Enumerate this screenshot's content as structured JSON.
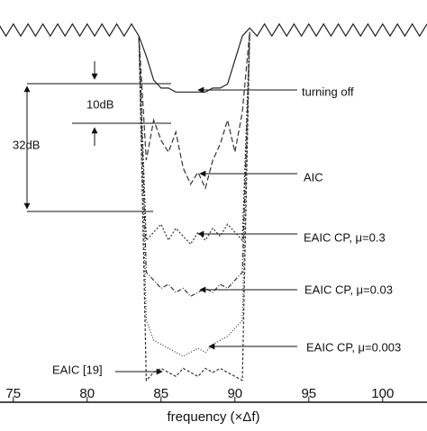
{
  "chart_data": {
    "type": "line",
    "xlabel": "frequency (×Δf)",
    "annotations": [
      "10dB",
      "32dB"
    ],
    "xlim": [
      74.1,
      103
    ],
    "xticks": [
      75,
      80,
      85,
      90,
      95,
      100
    ],
    "ylim": [
      -100,
      0
    ],
    "x": [
      74,
      74.5,
      75,
      75.5,
      76,
      76.5,
      77,
      77.5,
      78,
      78.5,
      79,
      79.5,
      80,
      80.5,
      81,
      81.5,
      82,
      82.5,
      83,
      83.5,
      84,
      84.5,
      85,
      85.5,
      86,
      86.5,
      87,
      87.5,
      88,
      88.5,
      89,
      89.5,
      90,
      90.5,
      91,
      91.5,
      92,
      92.5,
      93,
      93.5,
      94,
      94.5,
      95,
      95.5,
      96,
      96.5,
      97,
      97.5,
      98,
      98.5,
      99,
      99.5,
      100,
      100.5,
      101,
      101.5,
      102,
      102.5,
      103
    ],
    "series": [
      {
        "name": "turning off",
        "color": "#222222",
        "values": [
          -6,
          -9,
          -6,
          -9,
          -6,
          -9,
          -6,
          -9,
          -6,
          -9,
          -6,
          -9,
          -6,
          -9,
          -6,
          -9,
          -6,
          -9,
          -6,
          -9,
          -14,
          -20,
          -22,
          -22,
          -23,
          -23,
          -23,
          -23,
          -23,
          -22,
          -22,
          -21,
          -15,
          -9,
          -7,
          -9,
          -6,
          -9,
          -6,
          -9,
          -6,
          -9,
          -6,
          -9,
          -6,
          -9,
          -6,
          -9,
          -6,
          -9,
          -6,
          -9,
          -6,
          -9,
          -6,
          -9,
          -6,
          -9,
          -6
        ]
      },
      {
        "name": "AIC",
        "color": "#333333",
        "values": [
          null,
          null,
          null,
          null,
          null,
          null,
          null,
          null,
          null,
          null,
          null,
          null,
          null,
          null,
          null,
          null,
          null,
          null,
          null,
          -9,
          -40,
          -30,
          -35,
          -38,
          -33,
          -42,
          -46,
          -43,
          -47,
          -40,
          -36,
          -30,
          -38,
          -28,
          -8,
          null,
          null,
          null,
          null,
          null,
          null,
          null,
          null,
          null,
          null,
          null,
          null,
          null,
          null,
          null,
          null,
          null,
          null,
          null,
          null,
          null,
          null,
          null,
          null
        ]
      },
      {
        "name": "EAIC CP, μ=0.3",
        "color": "#333333",
        "values": [
          null,
          null,
          null,
          null,
          null,
          null,
          null,
          null,
          null,
          null,
          null,
          null,
          null,
          null,
          null,
          null,
          null,
          null,
          null,
          -9,
          -60,
          -58,
          -56,
          -60,
          -57,
          -59,
          -61,
          -58,
          -60,
          -57,
          -59,
          -56,
          -58,
          -60,
          -8,
          null,
          null,
          null,
          null,
          null,
          null,
          null,
          null,
          null,
          null,
          null,
          null,
          null,
          null,
          null,
          null,
          null,
          null,
          null,
          null,
          null,
          null,
          null,
          null
        ]
      },
      {
        "name": "EAIC CP, μ=0.03",
        "color": "#333333",
        "values": [
          null,
          null,
          null,
          null,
          null,
          null,
          null,
          null,
          null,
          null,
          null,
          null,
          null,
          null,
          null,
          null,
          null,
          null,
          null,
          -9,
          -68,
          -70,
          -72,
          -71,
          -73,
          -72,
          -74,
          -73,
          -72,
          -73,
          -71,
          -72,
          -70,
          -68,
          -8,
          null,
          null,
          null,
          null,
          null,
          null,
          null,
          null,
          null,
          null,
          null,
          null,
          null,
          null,
          null,
          null,
          null,
          null,
          null,
          null,
          null,
          null,
          null,
          null
        ]
      },
      {
        "name": "EAIC CP, μ=0.003",
        "color": "#333333",
        "values": [
          null,
          null,
          null,
          null,
          null,
          null,
          null,
          null,
          null,
          null,
          null,
          null,
          null,
          null,
          null,
          null,
          null,
          null,
          null,
          -9,
          -80,
          -85,
          -86,
          -87,
          -88,
          -89,
          -88,
          -87,
          -88,
          -86,
          -85,
          -84,
          -82,
          -80,
          -8,
          null,
          null,
          null,
          null,
          null,
          null,
          null,
          null,
          null,
          null,
          null,
          null,
          null,
          null,
          null,
          null,
          null,
          null,
          null,
          null,
          null,
          null,
          null,
          null
        ]
      },
      {
        "name": "EAIC [19]",
        "color": "#333333",
        "values": [
          null,
          null,
          null,
          null,
          null,
          null,
          null,
          null,
          null,
          null,
          null,
          null,
          null,
          null,
          null,
          null,
          null,
          null,
          null,
          -9,
          -95,
          -93,
          -92,
          -93,
          -94,
          -92,
          -93,
          -94,
          -92,
          -93,
          -92,
          -93,
          -94,
          -95,
          -8,
          null,
          null,
          null,
          null,
          null,
          null,
          null,
          null,
          null,
          null,
          null,
          null,
          null,
          null,
          null,
          null,
          null,
          null,
          null,
          null,
          null,
          null,
          null,
          null
        ]
      }
    ]
  }
}
